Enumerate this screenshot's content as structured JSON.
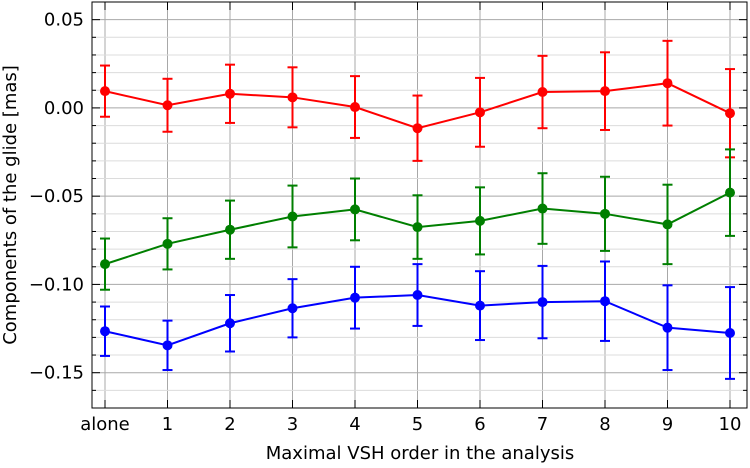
{
  "chart_data": {
    "type": "line",
    "title": "",
    "xlabel": "Maximal VSH order in the analysis",
    "ylabel": "Components of the glide [mas]",
    "categories": [
      "alone",
      "1",
      "2",
      "3",
      "4",
      "5",
      "6",
      "7",
      "8",
      "9",
      "10"
    ],
    "ylim": [
      -0.17,
      0.06
    ],
    "yticks": [
      {
        "value": 0.05,
        "label": "0.05"
      },
      {
        "value": 0.0,
        "label": "0.00"
      },
      {
        "value": -0.05,
        "label": "−0.05"
      },
      {
        "value": -0.1,
        "label": "−0.10"
      },
      {
        "value": -0.15,
        "label": "−0.15"
      }
    ],
    "grid": true,
    "series": [
      {
        "color": "#ff0000",
        "values": [
          0.0095,
          0.0015,
          0.008,
          0.006,
          0.0005,
          -0.0115,
          -0.0025,
          0.009,
          0.0095,
          0.014,
          -0.003
        ],
        "errors": [
          0.0145,
          0.015,
          0.0165,
          0.017,
          0.0175,
          0.0185,
          0.0195,
          0.0205,
          0.022,
          0.024,
          0.025
        ]
      },
      {
        "color": "#007f00",
        "values": [
          -0.0885,
          -0.077,
          -0.069,
          -0.0615,
          -0.0575,
          -0.0675,
          -0.064,
          -0.057,
          -0.06,
          -0.066,
          -0.048
        ],
        "errors": [
          0.0145,
          0.0145,
          0.0165,
          0.0175,
          0.0175,
          0.018,
          0.019,
          0.02,
          0.021,
          0.0225,
          0.0245
        ]
      },
      {
        "color": "#0000ff",
        "values": [
          -0.1265,
          -0.1345,
          -0.122,
          -0.1135,
          -0.1075,
          -0.106,
          -0.112,
          -0.11,
          -0.1095,
          -0.1245,
          -0.1275
        ],
        "errors": [
          0.014,
          0.014,
          0.016,
          0.0165,
          0.0175,
          0.0175,
          0.0195,
          0.0205,
          0.0225,
          0.024,
          0.026
        ]
      }
    ]
  }
}
